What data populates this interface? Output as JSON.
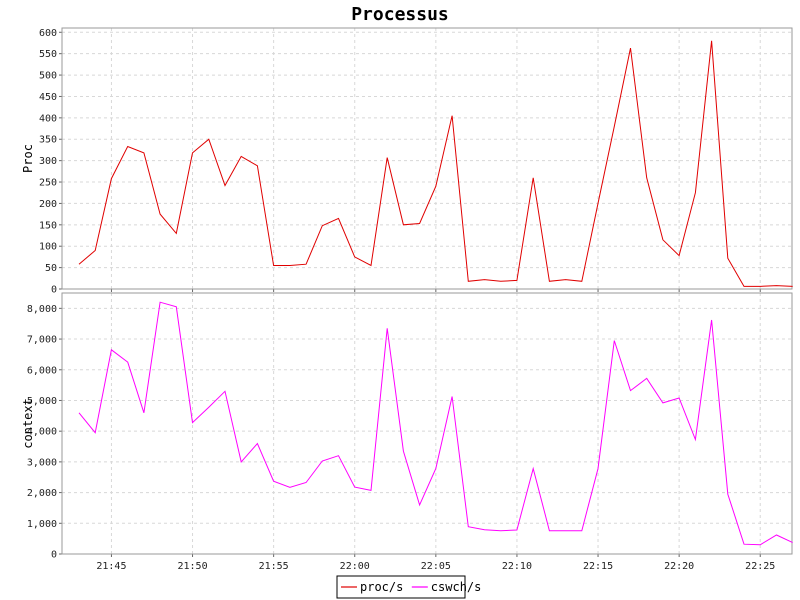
{
  "chart_data": {
    "title": "Processus",
    "type": "line",
    "x": [
      "21:43",
      "21:44",
      "21:45",
      "21:46",
      "21:47",
      "21:48",
      "21:49",
      "21:50",
      "21:51",
      "21:52",
      "21:53",
      "21:54",
      "21:55",
      "21:56",
      "21:57",
      "21:58",
      "21:59",
      "22:00",
      "22:01",
      "22:02",
      "22:03",
      "22:04",
      "22:05",
      "22:06",
      "22:07",
      "22:08",
      "22:09",
      "22:10",
      "22:11",
      "22:12",
      "22:13",
      "22:14",
      "22:15",
      "22:16",
      "22:17",
      "22:18",
      "22:19",
      "22:20",
      "22:21",
      "22:22",
      "22:23",
      "22:24",
      "22:25",
      "22:26",
      "22:27"
    ],
    "x_ticks": [
      "21:45",
      "21:50",
      "21:55",
      "22:00",
      "22:05",
      "22:10",
      "22:15",
      "22:20",
      "22:25"
    ],
    "grid": true,
    "legend_position": "bottom-center",
    "panels": [
      {
        "ylabel": "Proc",
        "ylim": [
          0,
          610
        ],
        "yticks": [
          0,
          50,
          100,
          150,
          200,
          250,
          300,
          350,
          400,
          450,
          500,
          550,
          600
        ],
        "ytick_labels": [
          "0",
          "50",
          "100",
          "150",
          "200",
          "250",
          "300",
          "350",
          "400",
          "450",
          "500",
          "550",
          "600"
        ],
        "series": [
          {
            "name": "proc/s",
            "color": "#e00000",
            "values": [
              58,
              90,
              258,
              333,
              318,
              175,
              130,
              318,
              350,
              242,
              310,
              288,
              55,
              55,
              58,
              148,
              165,
              75,
              55,
              307,
              150,
              153,
              240,
              405,
              18,
              22,
              18,
              20,
              260,
              18,
              22,
              18,
              200,
              380,
              563,
              260,
              115,
              78,
              225,
              580,
              72,
              6,
              6,
              8,
              6
            ]
          }
        ]
      },
      {
        "ylabel": "context",
        "ylim": [
          0,
          8500
        ],
        "yticks": [
          0,
          1000,
          2000,
          3000,
          4000,
          5000,
          6000,
          7000,
          8000
        ],
        "ytick_labels": [
          "0",
          "1,000",
          "2,000",
          "3,000",
          "4,000",
          "5,000",
          "6,000",
          "7,000",
          "8,000"
        ],
        "series": [
          {
            "name": "cswch/s",
            "color": "#ff00ff",
            "values": [
              4600,
              3950,
              6650,
              6250,
              4600,
              8200,
              8050,
              4280,
              4780,
              5300,
              3000,
              3600,
              2370,
              2170,
              2330,
              3030,
              3200,
              2180,
              2070,
              7350,
              3350,
              1600,
              2780,
              5130,
              890,
              790,
              760,
              780,
              2780,
              760,
              760,
              760,
              2780,
              6950,
              5320,
              5720,
              4920,
              5080,
              3730,
              7620,
              1950,
              320,
              300,
              620,
              370
            ]
          }
        ]
      }
    ],
    "legend": [
      "proc/s",
      "cswch/s"
    ]
  }
}
